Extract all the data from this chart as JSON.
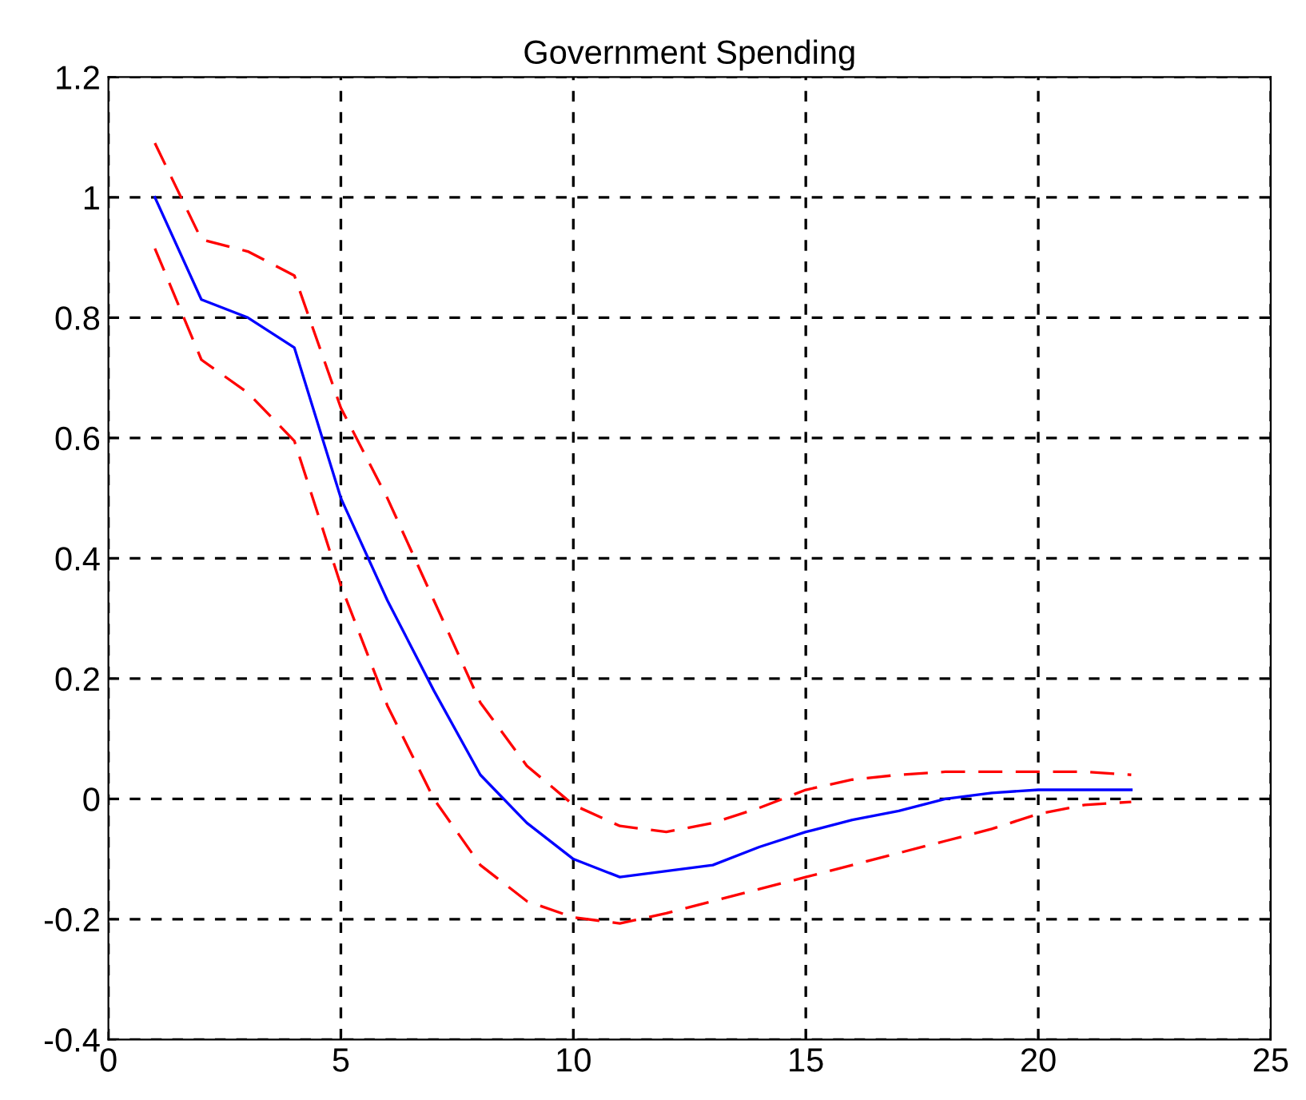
{
  "chart_data": {
    "type": "line",
    "title": "Government Spending",
    "x": [
      1,
      2,
      3,
      4,
      5,
      6,
      7,
      8,
      9,
      10,
      11,
      12,
      13,
      14,
      15,
      16,
      17,
      18,
      19,
      20,
      21,
      22
    ],
    "series": [
      {
        "color": "#0000ff",
        "line_style": "solid",
        "values": [
          1.0,
          0.83,
          0.8,
          0.75,
          0.5,
          0.33,
          0.18,
          0.04,
          -0.04,
          -0.1,
          -0.13,
          -0.12,
          -0.11,
          -0.08,
          -0.055,
          -0.035,
          -0.02,
          0.0,
          0.01,
          0.015,
          0.015,
          0.015
        ]
      },
      {
        "color": "#ff0000",
        "line_style": "dashed",
        "values": [
          1.09,
          0.93,
          0.91,
          0.87,
          0.65,
          0.5,
          0.33,
          0.16,
          0.055,
          -0.01,
          -0.045,
          -0.055,
          -0.04,
          -0.015,
          0.015,
          0.032,
          0.04,
          0.045,
          0.045,
          0.045,
          0.045,
          0.04
        ]
      },
      {
        "color": "#ff0000",
        "line_style": "dashed",
        "values": [
          0.915,
          0.73,
          0.675,
          0.595,
          0.355,
          0.155,
          0.0,
          -0.11,
          -0.17,
          -0.197,
          -0.207,
          -0.19,
          -0.17,
          -0.15,
          -0.13,
          -0.11,
          -0.09,
          -0.07,
          -0.05,
          -0.025,
          -0.01,
          -0.005
        ]
      }
    ],
    "xlim": [
      0,
      25
    ],
    "xticks": [
      0,
      5,
      10,
      15,
      20,
      25
    ],
    "ylim": [
      -0.4,
      1.2
    ],
    "yticks": [
      -0.4,
      -0.2,
      0,
      0.2,
      0.4,
      0.6,
      0.8,
      1,
      1.2
    ],
    "grid": true,
    "marker": "none"
  }
}
